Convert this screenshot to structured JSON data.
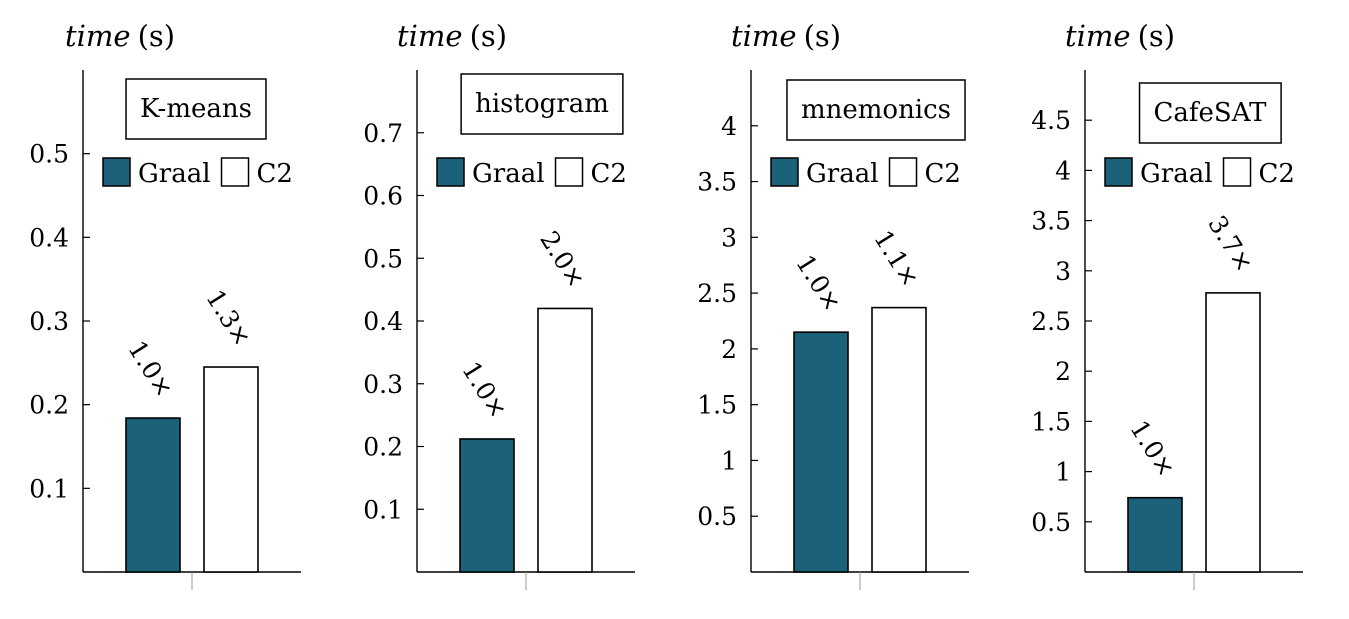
{
  "colors": {
    "graal": "#1b6179",
    "c2": "#ffffff",
    "axis": "#000000"
  },
  "chart_data": [
    {
      "type": "bar",
      "title": "K-means",
      "ylabel": "time (s)",
      "ylabel_parts": [
        "time",
        "(s)"
      ],
      "ylim": [
        0,
        0.6
      ],
      "yticks": [
        0.1,
        0.2,
        0.3,
        0.4,
        0.5
      ],
      "ytick_labels": [
        "0.1",
        "0.2",
        "0.3",
        "0.4",
        "0.5"
      ],
      "legend_position": "top",
      "series": [
        {
          "name": "Graal",
          "values": [
            0.184
          ],
          "label": "1.0×"
        },
        {
          "name": "C2",
          "values": [
            0.245
          ],
          "label": "1.3×"
        }
      ]
    },
    {
      "type": "bar",
      "title": "histogram",
      "ylabel": "time (s)",
      "ylabel_parts": [
        "time",
        "(s)"
      ],
      "ylim": [
        0,
        0.8
      ],
      "yticks": [
        0.1,
        0.2,
        0.3,
        0.4,
        0.5,
        0.6,
        0.7
      ],
      "ytick_labels": [
        "0.1",
        "0.2",
        "0.3",
        "0.4",
        "0.5",
        "0.6",
        "0.7"
      ],
      "legend_position": "top",
      "series": [
        {
          "name": "Graal",
          "values": [
            0.212
          ],
          "label": "1.0×"
        },
        {
          "name": "C2",
          "values": [
            0.42
          ],
          "label": "2.0×"
        }
      ]
    },
    {
      "type": "bar",
      "title": "mnemonics",
      "ylabel": "time (s)",
      "ylabel_parts": [
        "time",
        "(s)"
      ],
      "ylim": [
        0,
        4.5
      ],
      "yticks": [
        0.5,
        1,
        1.5,
        2,
        2.5,
        3,
        3.5,
        4
      ],
      "ytick_labels": [
        "0.5",
        "1",
        "1.5",
        "2",
        "2.5",
        "3",
        "3.5",
        "4"
      ],
      "legend_position": "top",
      "series": [
        {
          "name": "Graal",
          "values": [
            2.15
          ],
          "label": "1.0×"
        },
        {
          "name": "C2",
          "values": [
            2.37
          ],
          "label": "1.1×"
        }
      ]
    },
    {
      "type": "bar",
      "title": "CafeSAT",
      "ylabel": "time (s)",
      "ylabel_parts": [
        "time",
        "(s)"
      ],
      "ylim": [
        0,
        5
      ],
      "yticks": [
        0.5,
        1,
        1.5,
        2,
        2.5,
        3,
        3.5,
        4,
        4.5
      ],
      "ytick_labels": [
        "0.5",
        "1",
        "1.5",
        "2",
        "2.5",
        "3",
        "3.5",
        "4",
        "4.5"
      ],
      "legend_position": "top",
      "series": [
        {
          "name": "Graal",
          "values": [
            0.74
          ],
          "label": "1.0×"
        },
        {
          "name": "C2",
          "values": [
            2.78
          ],
          "label": "3.7×"
        }
      ]
    }
  ]
}
